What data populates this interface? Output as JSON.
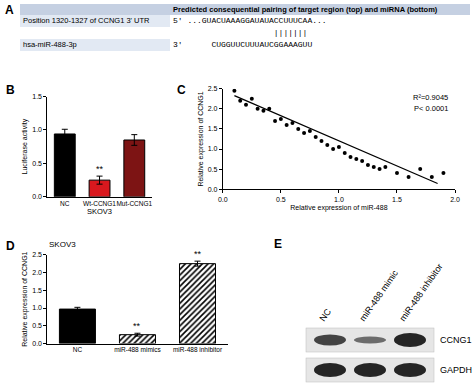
{
  "chart_data": [
    {
      "panel": "B",
      "type": "bar",
      "y_label": "Luciferase activity",
      "x_label": "SKOV3",
      "categories": [
        "NC",
        "Wt-CCNG1",
        "Mut-CCNG1"
      ],
      "values": [
        0.94,
        0.25,
        0.85
      ],
      "errors": [
        0.07,
        0.06,
        0.08
      ],
      "colors": [
        "#000000",
        "#d9181e",
        "#7d1414"
      ],
      "ylim": [
        0,
        1.5
      ],
      "yticks": [
        {
          "value": 0,
          "label": "0.0"
        },
        {
          "value": 0.5,
          "label": "0.5"
        },
        {
          "value": 1,
          "label": "1.0"
        },
        {
          "value": 1.5,
          "label": "1.5"
        }
      ],
      "grid": false,
      "annotations": [
        {
          "category": "Wt-CCNG1",
          "text": "**"
        }
      ]
    },
    {
      "panel": "C",
      "type": "scatter",
      "x_label": "Relative expression of miR-488",
      "y_label": "Relative expression of CCNG1",
      "series": [
        {
          "type": "scatter",
          "marker": "circle",
          "color": "#000000",
          "x": [
            0.1,
            0.15,
            0.2,
            0.25,
            0.3,
            0.35,
            0.4,
            0.45,
            0.5,
            0.55,
            0.6,
            0.65,
            0.7,
            0.75,
            0.8,
            0.85,
            0.9,
            0.95,
            1.0,
            1.05,
            1.1,
            1.15,
            1.2,
            1.25,
            1.3,
            1.35,
            1.4,
            1.5,
            1.6,
            1.7,
            1.8,
            1.9
          ],
          "values": [
            2.45,
            2.2,
            2.1,
            2.25,
            2.0,
            1.95,
            2.0,
            1.7,
            1.75,
            1.6,
            1.65,
            1.5,
            1.4,
            1.45,
            1.3,
            1.2,
            1.1,
            1.0,
            1.05,
            0.9,
            0.8,
            0.75,
            0.7,
            0.6,
            0.55,
            0.5,
            0.55,
            0.4,
            0.3,
            0.5,
            0.3,
            0.4
          ]
        },
        {
          "type": "line",
          "line_style": "solid",
          "color": "#000000",
          "x": [
            0.1,
            1.85
          ],
          "values": [
            2.33,
            0.14
          ]
        }
      ],
      "xlim": [
        0,
        2
      ],
      "xticks": [
        {
          "value": 0,
          "label": "0.0"
        },
        {
          "value": 0.5,
          "label": "0.5"
        },
        {
          "value": 1,
          "label": "1.0"
        },
        {
          "value": 1.5,
          "label": "1.5"
        },
        {
          "value": 2,
          "label": "2.0"
        }
      ],
      "ylim": [
        0,
        2.5
      ],
      "yticks": [
        {
          "value": 0,
          "label": "0.0"
        },
        {
          "value": 0.5,
          "label": "0.5"
        },
        {
          "value": 1,
          "label": "1.0"
        },
        {
          "value": 1.5,
          "label": "1.5"
        },
        {
          "value": 2,
          "label": "2.0"
        },
        {
          "value": 2.5,
          "label": "2.5"
        }
      ],
      "grid": false,
      "annotations": [
        {
          "text": "R²=0.9045"
        },
        {
          "text": "P< 0.0001"
        }
      ]
    },
    {
      "panel": "D",
      "type": "bar",
      "title": "SKOV3",
      "y_label": "Relative expression of CCNG1",
      "categories": [
        "NC",
        "miR-488 mimics",
        "miR-488 inhibitor"
      ],
      "values": [
        0.97,
        0.25,
        2.25
      ],
      "errors": [
        0.05,
        0.04,
        0.07
      ],
      "colors": [
        "#000000",
        "#000000",
        "#000000"
      ],
      "ylim": [
        0,
        2.5
      ],
      "yticks": [
        {
          "value": 0,
          "label": "0.0"
        },
        {
          "value": 0.5,
          "label": "0.5"
        },
        {
          "value": 1,
          "label": "1.0"
        },
        {
          "value": 1.5,
          "label": "1.5"
        },
        {
          "value": 2,
          "label": "2.0"
        },
        {
          "value": 2.5,
          "label": "2.5"
        }
      ],
      "grid": false,
      "annotations": [
        {
          "category": "miR-488 mimics",
          "text": "**"
        },
        {
          "category": "miR-488 inhibitor",
          "text": "**"
        }
      ]
    }
  ],
  "panel_a": {
    "panel": "A",
    "header": "Predicted consequential pairing of target region (top) and miRNA (bottom)",
    "target": {
      "label": "Position 1320-1327 of CCNG1 3' UTR",
      "sequence": "5' ...GUACUAAAGGAUAUACCUUUCAA..."
    },
    "pairing": "                     |||||||",
    "mirna": {
      "label": "hsa-miR-488-3p",
      "sequence": "3'      CUGGUUCUUUAUCGGAAAGUU"
    }
  },
  "panel_e": {
    "panel": "E",
    "lanes": [
      "NC",
      "miR-488 mimic",
      "miR-488 inhibitor"
    ],
    "rows": [
      {
        "name": "CCNG1",
        "band_intensity": [
          0.7,
          0.3,
          1.0
        ]
      },
      {
        "name": "GAPDH",
        "band_intensity": [
          1.0,
          1.0,
          1.0
        ]
      }
    ]
  }
}
